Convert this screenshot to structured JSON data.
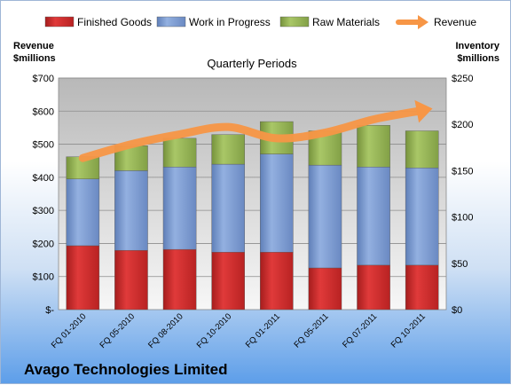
{
  "company": "Avago Technologies Limited",
  "chart_data": {
    "type": "bar",
    "stacked": true,
    "title": "Quarterly Periods",
    "left_axis_title": [
      "Revenue",
      "$millions"
    ],
    "right_axis_title": [
      "Inventory",
      "$millions"
    ],
    "categories": [
      "FQ 01-2010",
      "FQ 05-2010",
      "FQ 08-2010",
      "FQ 10-2010",
      "FQ 01-2011",
      "FQ 05-2011",
      "FQ 07-2011",
      "FQ 10-2011"
    ],
    "series": [
      {
        "name": "Finished Goods",
        "axis": "right",
        "color": "#d42b2b",
        "values": [
          69,
          64,
          65,
          62,
          62,
          45,
          48,
          48
        ]
      },
      {
        "name": "Work in Progress",
        "axis": "right",
        "color": "#7f9fd6",
        "values": [
          72,
          86,
          89,
          95,
          106,
          111,
          106,
          105
        ]
      },
      {
        "name": "Raw Materials",
        "axis": "right",
        "color": "#9bbb59",
        "values": [
          24,
          27,
          31,
          32,
          35,
          37,
          45,
          40
        ]
      },
      {
        "name": "Revenue",
        "axis": "left",
        "type": "line",
        "color": "#f79646",
        "values": [
          458,
          500,
          530,
          552,
          518,
          535,
          575,
          602
        ]
      }
    ],
    "left_axis": {
      "min": 0,
      "max": 700,
      "step": 100,
      "tick_labels": [
        "$-",
        "$100",
        "$200",
        "$300",
        "$400",
        "$500",
        "$600",
        "$700"
      ]
    },
    "right_axis": {
      "min": 0,
      "max": 250,
      "step": 50,
      "tick_labels": [
        "$0",
        "$50",
        "$100",
        "$150",
        "$200",
        "$250"
      ]
    },
    "legend_position": "top",
    "grid": true
  }
}
